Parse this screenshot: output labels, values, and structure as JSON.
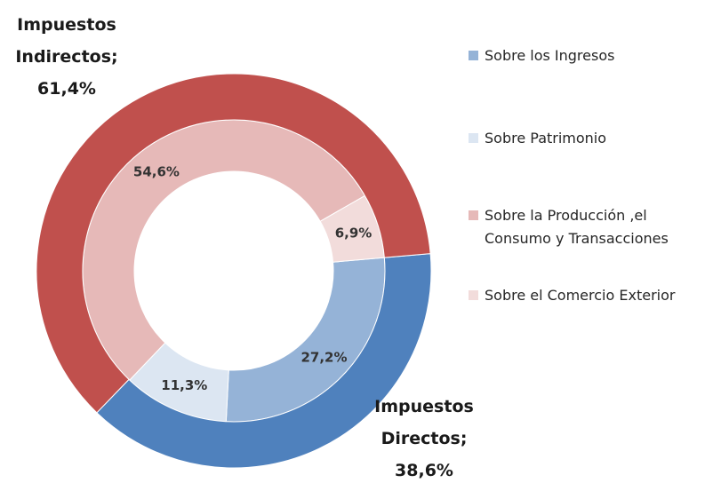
{
  "chart_data": {
    "type": "donut",
    "rings": [
      {
        "categories": [
          "Sobre los Ingresos",
          "Sobre Patrimonio",
          "Sobre la Producción ,el Consumo y Transacciones",
          "Sobre el Comercio Exterior"
        ],
        "values": [
          27.2,
          11.3,
          54.6,
          6.9
        ],
        "value_labels": [
          "27,2%",
          "11,3%",
          "54,6%",
          "6,9%"
        ],
        "colors": [
          "#95b3d7",
          "#dce6f2",
          "#e6b9b8",
          "#f2dcdb"
        ]
      },
      {
        "categories": [
          "Impuestos Directos",
          "Impuestos Indirectos"
        ],
        "values": [
          38.6,
          61.4
        ],
        "value_labels": [
          "38,6%",
          "61,4%"
        ],
        "colors": [
          "#4f81bd",
          "#c0504d"
        ]
      }
    ],
    "label_separator": ";",
    "legend": "right"
  }
}
